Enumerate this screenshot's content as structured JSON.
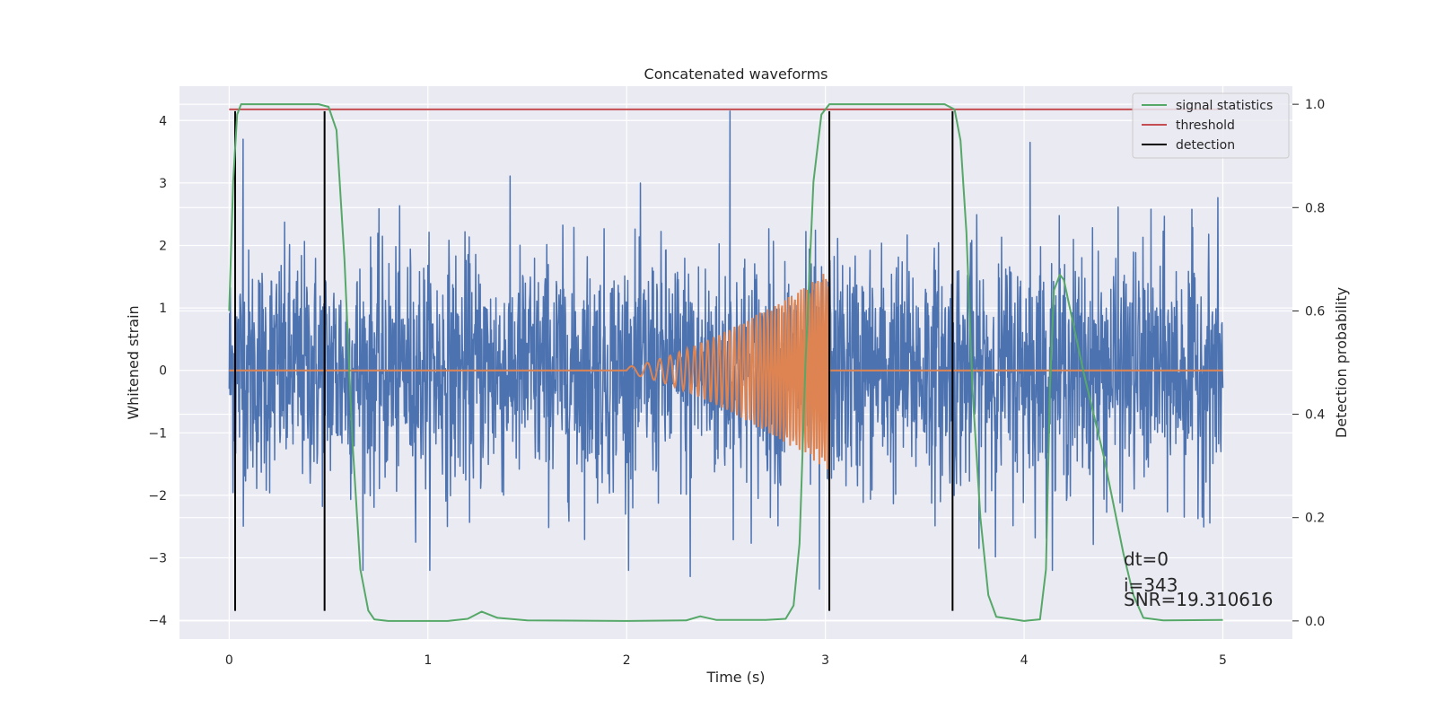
{
  "chart_data": {
    "type": "line",
    "title": "Concatenated waveforms",
    "xlabel": "Time (s)",
    "ylabel": "Whitened strain",
    "ylabel_right": "Detection probability",
    "xlim": [
      -0.25,
      5.35
    ],
    "ylim": [
      -4.3,
      4.55
    ],
    "ylim_right": [
      -0.035,
      1.035
    ],
    "x_ticks": [
      0,
      1,
      2,
      3,
      4,
      5
    ],
    "y_ticks": [
      -4,
      -3,
      -2,
      -1,
      0,
      1,
      2,
      3,
      4
    ],
    "y_ticks_right": [
      0.0,
      0.2,
      0.4,
      0.6,
      0.8,
      1.0
    ],
    "y_tick_labels": [
      "−4",
      "−3",
      "−2",
      "−1",
      "0",
      "1",
      "2",
      "3",
      "4"
    ],
    "y_tick_labels_right": [
      "0.0",
      "0.2",
      "0.4",
      "0.6",
      "0.8",
      "1.0"
    ],
    "grid": true,
    "legend_position": "top-right",
    "series": [
      {
        "name": "",
        "axis": "left",
        "color": "#4c72b0",
        "kind": "noise",
        "x_range": [
          0,
          5
        ],
        "amplitude_std": 0.95,
        "peak_values": [
          {
            "x": 2.52,
            "y": 4.15
          },
          {
            "x": 0.07,
            "y": 3.7
          },
          {
            "x": 4.03,
            "y": 3.65
          },
          {
            "x": 2.32,
            "y": -3.3
          },
          {
            "x": 2.97,
            "y": -3.5
          }
        ]
      },
      {
        "name": "",
        "axis": "left",
        "color": "#dd8452",
        "kind": "chirp",
        "x_range": [
          0,
          5
        ],
        "chirp_start": 2.0,
        "chirp_end": 3.02,
        "peak_amplitude": 1.55
      },
      {
        "name": "signal statistics",
        "axis": "right",
        "color": "#55a868",
        "x": [
          0.0,
          0.02,
          0.04,
          0.06,
          0.1,
          0.2,
          0.45,
          0.5,
          0.54,
          0.58,
          0.62,
          0.66,
          0.7,
          0.73,
          0.8,
          1.1,
          1.2,
          1.27,
          1.35,
          1.5,
          2.0,
          2.3,
          2.37,
          2.45,
          2.7,
          2.8,
          2.84,
          2.87,
          2.9,
          2.94,
          2.98,
          3.02,
          3.08,
          3.6,
          3.65,
          3.68,
          3.71,
          3.74,
          3.78,
          3.82,
          3.86,
          4.0,
          4.08,
          4.11,
          4.13,
          4.15,
          4.18,
          4.2,
          4.3,
          4.4,
          4.5,
          4.55,
          4.6,
          4.7,
          5.0
        ],
        "values": [
          0.6,
          0.85,
          0.98,
          1.0,
          1.0,
          1.0,
          1.0,
          0.995,
          0.95,
          0.7,
          0.35,
          0.1,
          0.02,
          0.003,
          0.0,
          0.0,
          0.004,
          0.018,
          0.006,
          0.001,
          0.0,
          0.001,
          0.009,
          0.002,
          0.002,
          0.004,
          0.03,
          0.15,
          0.5,
          0.85,
          0.98,
          1.0,
          1.0,
          1.0,
          0.99,
          0.93,
          0.75,
          0.45,
          0.2,
          0.05,
          0.008,
          0.0,
          0.003,
          0.1,
          0.45,
          0.64,
          0.67,
          0.66,
          0.48,
          0.32,
          0.13,
          0.05,
          0.006,
          0.001,
          0.002
        ]
      },
      {
        "name": "threshold",
        "axis": "right",
        "color": "#c44e52",
        "x": [
          0,
          5
        ],
        "values": [
          0.99,
          0.99
        ]
      },
      {
        "name": "detection",
        "axis": "left",
        "color": "#000000",
        "kind": "vlines",
        "x": [
          0.03,
          0.48,
          3.02,
          3.64
        ],
        "y_range": [
          -3.85,
          4.15
        ]
      }
    ],
    "annotations": [
      "dt=0",
      "i=343",
      "SNR=19.310616"
    ]
  }
}
